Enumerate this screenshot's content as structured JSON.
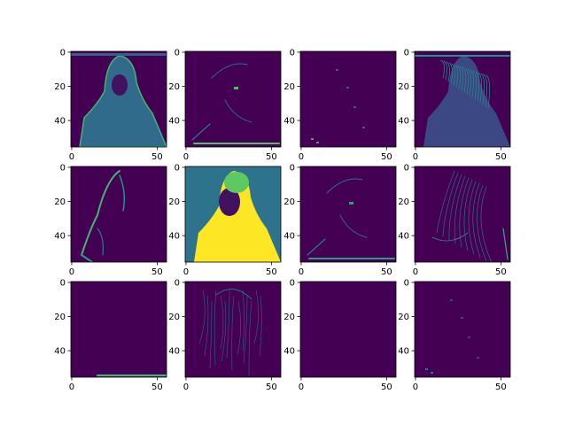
{
  "chart_data": {
    "type": "heatmap",
    "description_visible": "3x4 grid of feature-map images",
    "colormap": "viridis",
    "rows": 3,
    "cols": 4,
    "image_size": [
      56,
      56
    ],
    "x_ticks": [
      0,
      50
    ],
    "y_ticks": [
      0,
      20,
      40
    ],
    "panels": [
      {
        "row": 0,
        "col": 0,
        "mean_intensity": 0.35,
        "peak_intensity": 0.65,
        "pattern": "silhouette"
      },
      {
        "row": 0,
        "col": 1,
        "mean_intensity": 0.06,
        "peak_intensity": 0.7,
        "pattern": "edges-sparse"
      },
      {
        "row": 0,
        "col": 2,
        "mean_intensity": 0.01,
        "peak_intensity": 0.6,
        "pattern": "dots"
      },
      {
        "row": 0,
        "col": 3,
        "mean_intensity": 0.18,
        "peak_intensity": 0.6,
        "pattern": "texture"
      },
      {
        "row": 1,
        "col": 0,
        "mean_intensity": 0.08,
        "peak_intensity": 0.7,
        "pattern": "contour"
      },
      {
        "row": 1,
        "col": 1,
        "mean_intensity": 0.7,
        "peak_intensity": 1.0,
        "pattern": "bright-figure"
      },
      {
        "row": 1,
        "col": 2,
        "mean_intensity": 0.05,
        "peak_intensity": 0.55,
        "pattern": "edges-sparse"
      },
      {
        "row": 1,
        "col": 3,
        "mean_intensity": 0.05,
        "peak_intensity": 0.6,
        "pattern": "hair-lines"
      },
      {
        "row": 2,
        "col": 0,
        "mean_intensity": 0.01,
        "peak_intensity": 0.65,
        "pattern": "bottom-line"
      },
      {
        "row": 2,
        "col": 1,
        "mean_intensity": 0.06,
        "peak_intensity": 0.5,
        "pattern": "fine-edges"
      },
      {
        "row": 2,
        "col": 2,
        "mean_intensity": 0.0,
        "peak_intensity": 0.0,
        "pattern": "empty"
      },
      {
        "row": 2,
        "col": 3,
        "mean_intensity": 0.01,
        "peak_intensity": 0.4,
        "pattern": "dots"
      }
    ]
  }
}
